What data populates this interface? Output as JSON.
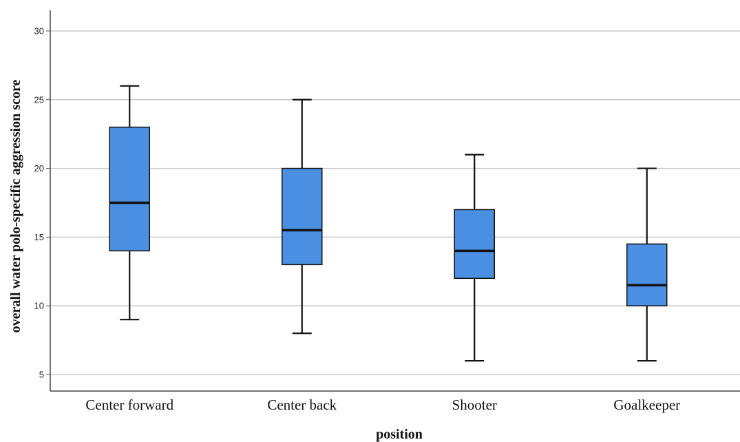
{
  "chart_data": {
    "type": "boxplot",
    "title": "",
    "xlabel": "position",
    "ylabel": "overall water polo-specific aggression score",
    "ylim": [
      3.8,
      31.5
    ],
    "yticks": [
      5,
      10,
      15,
      20,
      25,
      30
    ],
    "grid": true,
    "categories": [
      "Center forward",
      "Center back",
      "Shooter",
      "Goalkeeper"
    ],
    "boxes": [
      {
        "min": 9,
        "q1": 14,
        "median": 17.5,
        "q3": 23,
        "max": 26
      },
      {
        "min": 8,
        "q1": 13,
        "median": 15.5,
        "q3": 20,
        "max": 25
      },
      {
        "min": 6,
        "q1": 12,
        "median": 14,
        "q3": 17,
        "max": 21
      },
      {
        "min": 6,
        "q1": 10,
        "median": 11.5,
        "q3": 14.5,
        "max": 20
      }
    ],
    "colors": {
      "box_fill": "#4a8fe2",
      "stroke": "#111111",
      "grid": "#c8c8c8"
    }
  }
}
